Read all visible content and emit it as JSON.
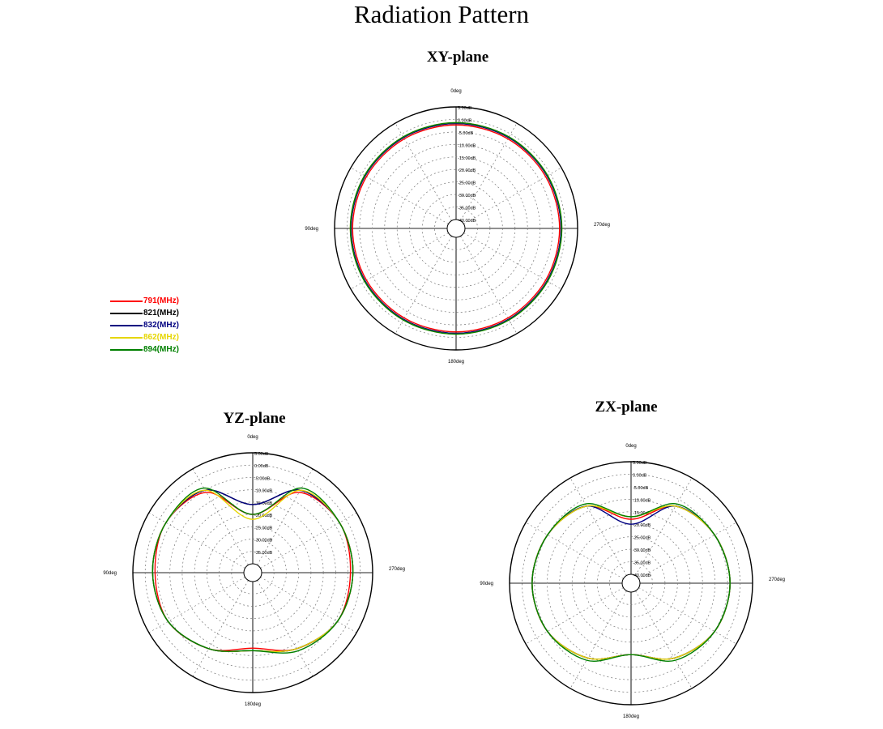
{
  "title": "Radiation Pattern",
  "legend": [
    {
      "label": "791(MHz)",
      "color": "#ff0000"
    },
    {
      "label": "821(MHz)",
      "color": "#000000"
    },
    {
      "label": "832(MHz)",
      "color": "#000080"
    },
    {
      "label": "862(MHz)",
      "color": "#e6d600"
    },
    {
      "label": "894(MHz)",
      "color": "#008000"
    }
  ],
  "chart_data": [
    {
      "type": "polar",
      "title": "XY-plane",
      "angle_labels": [
        "0deg",
        "90deg",
        "180deg",
        "270deg"
      ],
      "radial_labels": [
        "-40.00dB",
        "-35.00dB",
        "-30.00dB",
        "-25.00dB",
        "-20.00dB",
        "-15.00dB",
        "-10.00dB",
        "-5.00dB",
        "0.00dB",
        "5.00dB"
      ],
      "r_range_db": [
        -40,
        5
      ],
      "grid": true,
      "angles_deg": [
        0,
        30,
        60,
        90,
        120,
        150,
        180,
        210,
        240,
        270,
        300,
        330
      ],
      "series": [
        {
          "name": "791(MHz)",
          "gain_db": [
            -2.2,
            -2.2,
            -2.2,
            -2.2,
            -2.2,
            -2.2,
            -2.2,
            -2.2,
            -2.2,
            -2.2,
            -2.2,
            -2.2
          ]
        },
        {
          "name": "821(MHz)",
          "gain_db": [
            -1.6,
            -1.6,
            -1.6,
            -1.6,
            -1.6,
            -1.6,
            -1.6,
            -1.6,
            -1.6,
            -1.6,
            -1.6,
            -1.6
          ]
        },
        {
          "name": "832(MHz)",
          "gain_db": [
            -1.6,
            -1.6,
            -1.6,
            -1.6,
            -1.6,
            -1.6,
            -1.6,
            -1.6,
            -1.6,
            -1.6,
            -1.6,
            -1.6
          ]
        },
        {
          "name": "862(MHz)",
          "gain_db": [
            -1.3,
            -1.3,
            -1.3,
            -1.3,
            -1.3,
            -1.3,
            -1.3,
            -1.3,
            -1.3,
            -1.3,
            -1.3,
            -1.3
          ]
        },
        {
          "name": "894(MHz)",
          "gain_db": [
            -1.3,
            -1.3,
            -1.3,
            -1.3,
            -1.3,
            -1.3,
            -1.3,
            -1.3,
            -1.3,
            -1.3,
            -1.3,
            -1.3
          ]
        }
      ]
    },
    {
      "type": "polar",
      "title": "YZ-plane",
      "angle_labels": [
        "0deg",
        "90deg",
        "180deg",
        "270deg"
      ],
      "radial_labels": [
        "-35.00dB",
        "-30.00dB",
        "-25.00dB",
        "-20.00dB",
        "-15.00dB",
        "-10.00dB",
        "-5.00dB",
        "0.00dB",
        "5.00dB"
      ],
      "r_range_db": [
        -40,
        5
      ],
      "grid": true,
      "angles_deg": [
        0,
        30,
        60,
        90,
        120,
        150,
        180,
        210,
        240,
        270,
        300,
        330
      ],
      "series": [
        {
          "name": "791(MHz)",
          "gain_db": [
            -20,
            -6,
            -3,
            -4,
            -4,
            -8,
            -13,
            -8,
            -4,
            -4,
            -3,
            -6
          ]
        },
        {
          "name": "821(MHz)",
          "gain_db": [
            -16,
            -5,
            -3,
            -3,
            -4,
            -8,
            -12,
            -8,
            -4,
            -3,
            -3,
            -5
          ]
        },
        {
          "name": "832(MHz)",
          "gain_db": [
            -16,
            -5,
            -3,
            -3,
            -4,
            -8,
            -12,
            -8,
            -4,
            -3,
            -3,
            -5
          ]
        },
        {
          "name": "862(MHz)",
          "gain_db": [
            -22,
            -5,
            -3,
            -3,
            -4,
            -8,
            -12,
            -8,
            -4,
            -3,
            -3,
            -5
          ]
        },
        {
          "name": "894(MHz)",
          "gain_db": [
            -20,
            -4,
            -3,
            -3,
            -4,
            -8,
            -12,
            -7,
            -4,
            -3,
            -3,
            -4
          ]
        }
      ]
    },
    {
      "type": "polar",
      "title": "ZX-plane",
      "angle_labels": [
        "0deg",
        "90deg",
        "180deg",
        "270deg"
      ],
      "radial_labels": [
        "-40.00dB",
        "-35.00dB",
        "-30.00dB",
        "-25.00dB",
        "-20.00dB",
        "-15.00dB",
        "-10.00dB",
        "-5.00dB",
        "0.00dB",
        "5.00dB"
      ],
      "r_range_db": [
        -40,
        5
      ],
      "grid": true,
      "angles_deg": [
        0,
        30,
        60,
        90,
        120,
        150,
        180,
        210,
        240,
        270,
        300,
        330
      ],
      "series": [
        {
          "name": "791(MHz)",
          "gain_db": [
            -18,
            -8,
            -5,
            -4,
            -5,
            -9,
            -15,
            -9,
            -5,
            -4,
            -5,
            -8
          ]
        },
        {
          "name": "821(MHz)",
          "gain_db": [
            -17,
            -8,
            -5,
            -4,
            -5,
            -9,
            -15,
            -9,
            -5,
            -4,
            -5,
            -8
          ]
        },
        {
          "name": "832(MHz)",
          "gain_db": [
            -20,
            -8,
            -5,
            -4,
            -5,
            -9,
            -15,
            -9,
            -5,
            -4,
            -5,
            -8
          ]
        },
        {
          "name": "862(MHz)",
          "gain_db": [
            -17,
            -8,
            -5,
            -4,
            -5,
            -9,
            -15,
            -9,
            -5,
            -4,
            -5,
            -8
          ]
        },
        {
          "name": "894(MHz)",
          "gain_db": [
            -17,
            -7,
            -5,
            -4,
            -5,
            -8,
            -15,
            -8,
            -5,
            -4,
            -5,
            -7
          ]
        }
      ]
    }
  ]
}
